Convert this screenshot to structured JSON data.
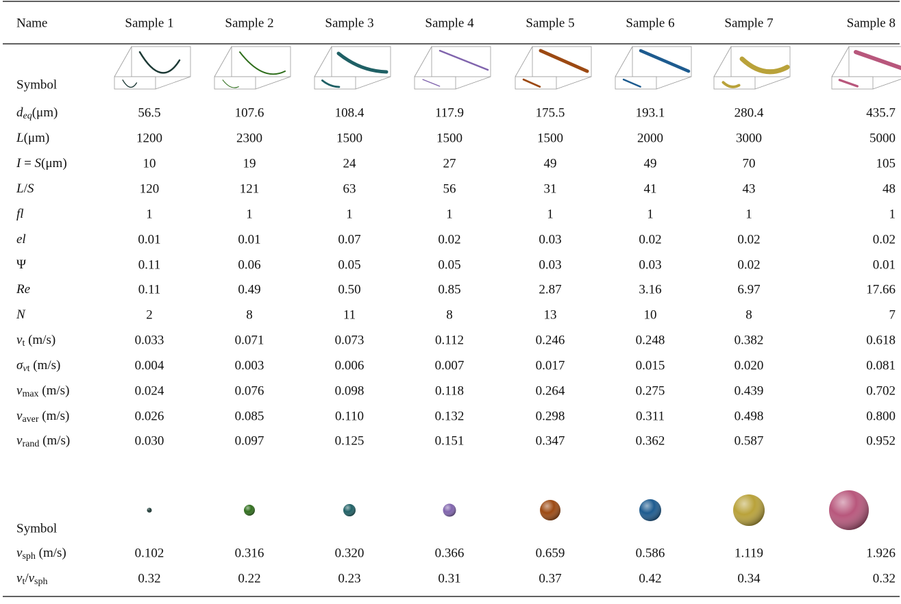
{
  "table": {
    "header": [
      "Name",
      "Sample 1",
      "Sample 2",
      "Sample 3",
      "Sample 4",
      "Sample 5",
      "Sample 6",
      "Sample 7",
      "Sample 8"
    ],
    "rows": [
      {
        "label": "Symbol"
      },
      {
        "label": [
          {
            "text": "d",
            "style": "italic"
          },
          {
            "text": "eq",
            "style": "sub-italic"
          },
          {
            "text": "(μm)",
            "style": "normal"
          }
        ],
        "cells": [
          "56.5",
          "107.6",
          "108.4",
          "117.9",
          "175.5",
          "193.1",
          "280.4",
          "435.7"
        ]
      },
      {
        "label": [
          {
            "text": "L",
            "style": "italic"
          },
          {
            "text": "(μm)",
            "style": "normal"
          }
        ],
        "cells": [
          "1200",
          "2300",
          "1500",
          "1500",
          "1500",
          "2000",
          "3000",
          "5000"
        ]
      },
      {
        "label": [
          {
            "text": "I",
            "style": "italic"
          },
          {
            "text": " = ",
            "style": "normal"
          },
          {
            "text": "S",
            "style": "italic"
          },
          {
            "text": "(μm)",
            "style": "normal"
          }
        ],
        "cells": [
          "10",
          "19",
          "24",
          "27",
          "49",
          "49",
          "70",
          "105"
        ]
      },
      {
        "label": [
          {
            "text": "L",
            "style": "italic"
          },
          {
            "text": "/",
            "style": "normal"
          },
          {
            "text": "S",
            "style": "italic"
          }
        ],
        "cells": [
          "120",
          "121",
          "63",
          "56",
          "31",
          "41",
          "43",
          "48"
        ]
      },
      {
        "label": [
          {
            "text": "fl",
            "style": "italic"
          }
        ],
        "cells": [
          "1",
          "1",
          "1",
          "1",
          "1",
          "1",
          "1",
          "1"
        ]
      },
      {
        "label": [
          {
            "text": "el",
            "style": "italic"
          }
        ],
        "cells": [
          "0.01",
          "0.01",
          "0.07",
          "0.02",
          "0.03",
          "0.02",
          "0.02",
          "0.02"
        ]
      },
      {
        "label": [
          {
            "text": "Ψ",
            "style": "normal"
          }
        ],
        "cells": [
          "0.11",
          "0.06",
          "0.05",
          "0.05",
          "0.03",
          "0.03",
          "0.02",
          "0.01"
        ]
      },
      {
        "label": [
          {
            "text": "Re",
            "style": "italic"
          }
        ],
        "cells": [
          "0.11",
          "0.49",
          "0.50",
          "0.85",
          "2.87",
          "3.16",
          "6.97",
          "17.66"
        ]
      },
      {
        "label": [
          {
            "text": "N",
            "style": "italic"
          }
        ],
        "cells": [
          "2",
          "8",
          "11",
          "8",
          "13",
          "10",
          "8",
          "7"
        ]
      },
      {
        "label": [
          {
            "text": "v",
            "style": "italic"
          },
          {
            "text": "t",
            "style": "sub"
          },
          {
            "text": " (m/s)",
            "style": "normal"
          }
        ],
        "cells": [
          "0.033",
          "0.071",
          "0.073",
          "0.112",
          "0.246",
          "0.248",
          "0.382",
          "0.618"
        ]
      },
      {
        "label": [
          {
            "text": "σ",
            "style": "italic"
          },
          {
            "text": "v",
            "style": "sub-italic"
          },
          {
            "text": "t",
            "style": "sub"
          },
          {
            "text": " (m/s)",
            "style": "normal"
          }
        ],
        "cells": [
          "0.004",
          "0.003",
          "0.006",
          "0.007",
          "0.017",
          "0.015",
          "0.020",
          "0.081"
        ]
      },
      {
        "label": [
          {
            "text": "v",
            "style": "italic"
          },
          {
            "text": "max",
            "style": "sub"
          },
          {
            "text": " (m/s)",
            "style": "normal"
          }
        ],
        "cells": [
          "0.024",
          "0.076",
          "0.098",
          "0.118",
          "0.264",
          "0.275",
          "0.439",
          "0.702"
        ]
      },
      {
        "label": [
          {
            "text": "v",
            "style": "italic"
          },
          {
            "text": "aver",
            "style": "sub"
          },
          {
            "text": " (m/s)",
            "style": "normal"
          }
        ],
        "cells": [
          "0.026",
          "0.085",
          "0.110",
          "0.132",
          "0.298",
          "0.311",
          "0.498",
          "0.800"
        ]
      },
      {
        "label": [
          {
            "text": "v",
            "style": "italic"
          },
          {
            "text": "rand",
            "style": "sub"
          },
          {
            "text": " (m/s)",
            "style": "normal"
          }
        ],
        "cells": [
          "0.030",
          "0.097",
          "0.125",
          "0.151",
          "0.347",
          "0.362",
          "0.587",
          "0.952"
        ]
      },
      {
        "label": "Symbol"
      },
      {
        "label": [
          {
            "text": "v",
            "style": "italic"
          },
          {
            "text": "sph",
            "style": "sub"
          },
          {
            "text": " (m/s)",
            "style": "normal"
          }
        ],
        "cells": [
          "0.102",
          "0.316",
          "0.320",
          "0.366",
          "0.659",
          "0.586",
          "1.119",
          "1.926"
        ]
      },
      {
        "label": [
          {
            "text": "v",
            "style": "italic"
          },
          {
            "text": "t",
            "style": "sub"
          },
          {
            "text": "/",
            "style": "normal"
          },
          {
            "text": "v",
            "style": "italic"
          },
          {
            "text": "sph",
            "style": "sub"
          }
        ],
        "cells": [
          "0.32",
          "0.22",
          "0.23",
          "0.31",
          "0.37",
          "0.42",
          "0.34",
          "0.32"
        ]
      }
    ]
  }
}
